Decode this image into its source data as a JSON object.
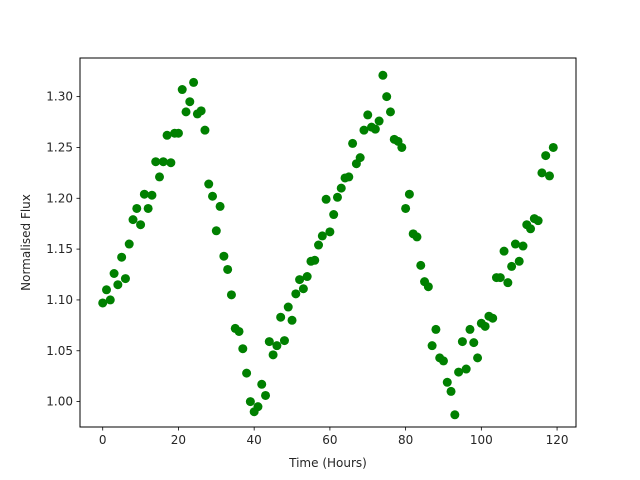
{
  "chart_data": {
    "type": "scatter",
    "title": "",
    "xlabel": "Time (Hours)",
    "ylabel": "Normalised Flux",
    "xlim": [
      -6,
      125
    ],
    "ylim": [
      0.975,
      1.338
    ],
    "xticks": [
      0,
      20,
      40,
      60,
      80,
      100,
      120
    ],
    "yticks": [
      1.0,
      1.05,
      1.1,
      1.15,
      1.2,
      1.25,
      1.3
    ],
    "ytick_labels": [
      "1.00",
      "1.05",
      "1.10",
      "1.15",
      "1.20",
      "1.25",
      "1.30"
    ],
    "grid": false,
    "marker_color": "#008000",
    "series": [
      {
        "x": [
          0,
          1,
          2,
          3,
          4,
          5,
          6,
          7,
          8,
          9,
          10,
          11,
          12,
          13,
          14,
          15,
          16,
          17,
          18,
          19,
          20,
          21,
          22,
          23,
          24,
          25,
          26,
          27,
          28,
          29,
          30,
          31,
          32,
          33,
          34,
          35,
          36,
          37,
          38,
          39,
          40,
          41,
          42,
          43,
          44,
          45,
          46,
          47,
          48,
          49,
          50,
          51,
          52,
          53,
          54,
          55,
          56,
          57,
          58,
          59,
          60,
          61,
          62,
          63,
          64,
          65,
          66,
          67,
          68,
          69,
          70,
          71,
          72,
          73,
          74,
          75,
          76,
          77,
          78,
          79,
          80,
          81,
          82,
          83,
          84,
          85,
          86,
          87,
          88,
          89,
          90,
          91,
          92,
          93,
          94,
          95,
          96,
          97,
          98,
          99,
          100,
          101,
          102,
          103,
          104,
          105,
          106,
          107,
          108,
          109,
          110,
          111,
          112,
          113,
          114,
          115,
          116,
          117,
          118,
          119
        ],
        "y": [
          1.097,
          1.11,
          1.1,
          1.126,
          1.115,
          1.142,
          1.121,
          1.155,
          1.179,
          1.19,
          1.174,
          1.204,
          1.19,
          1.203,
          1.236,
          1.221,
          1.236,
          1.262,
          1.235,
          1.264,
          1.264,
          1.307,
          1.285,
          1.295,
          1.314,
          1.283,
          1.286,
          1.267,
          1.214,
          1.202,
          1.168,
          1.192,
          1.143,
          1.13,
          1.105,
          1.072,
          1.069,
          1.052,
          1.028,
          1.0,
          0.99,
          0.995,
          1.017,
          1.006,
          1.059,
          1.046,
          1.055,
          1.083,
          1.06,
          1.093,
          1.08,
          1.106,
          1.12,
          1.111,
          1.123,
          1.138,
          1.139,
          1.154,
          1.163,
          1.199,
          1.167,
          1.184,
          1.201,
          1.21,
          1.22,
          1.221,
          1.254,
          1.234,
          1.24,
          1.267,
          1.282,
          1.27,
          1.268,
          1.276,
          1.321,
          1.3,
          1.285,
          1.258,
          1.256,
          1.25,
          1.19,
          1.204,
          1.165,
          1.162,
          1.134,
          1.118,
          1.113,
          1.055,
          1.071,
          1.043,
          1.04,
          1.019,
          1.01,
          0.987,
          1.029,
          1.059,
          1.032,
          1.071,
          1.058,
          1.043,
          1.077,
          1.074,
          1.084,
          1.082,
          1.122,
          1.122,
          1.148,
          1.117,
          1.133,
          1.155,
          1.138,
          1.153,
          1.174,
          1.17,
          1.18,
          1.178,
          1.225,
          1.242,
          1.222,
          1.25
        ]
      }
    ]
  }
}
